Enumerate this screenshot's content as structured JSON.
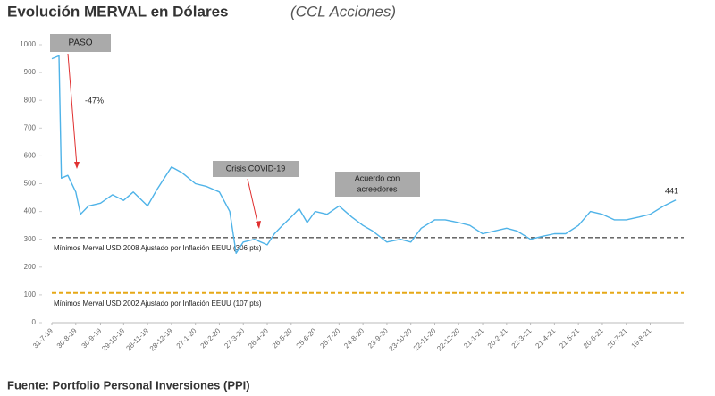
{
  "chart_data": {
    "type": "line",
    "title": "Evolución MERVAL en Dólares",
    "subtitle": "(CCL Acciones)",
    "source": "Fuente: Portfolio Personal Inversiones (PPI)",
    "ylim": [
      0,
      1000
    ],
    "yticks": [
      0,
      100,
      200,
      300,
      400,
      500,
      600,
      700,
      800,
      900,
      1000
    ],
    "xlim": [
      "2019-07-31",
      "2021-09-30"
    ],
    "xticks": [
      {
        "value": "2019-07-31",
        "label": "31-7-19"
      },
      {
        "value": "2019-08-30",
        "label": "30-8-19"
      },
      {
        "value": "2019-09-30",
        "label": "30-9-19"
      },
      {
        "value": "2019-10-29",
        "label": "29-10-19"
      },
      {
        "value": "2019-11-28",
        "label": "28-11-19"
      },
      {
        "value": "2019-12-28",
        "label": "28-12-19"
      },
      {
        "value": "2020-01-27",
        "label": "27-1-20"
      },
      {
        "value": "2020-02-26",
        "label": "26-2-20"
      },
      {
        "value": "2020-03-27",
        "label": "27-3-20"
      },
      {
        "value": "2020-04-26",
        "label": "26-4-20"
      },
      {
        "value": "2020-05-26",
        "label": "26-5-20"
      },
      {
        "value": "2020-06-25",
        "label": "25-6-20"
      },
      {
        "value": "2020-07-25",
        "label": "25-7-20"
      },
      {
        "value": "2020-08-24",
        "label": "24-8-20"
      },
      {
        "value": "2020-09-23",
        "label": "23-9-20"
      },
      {
        "value": "2020-10-23",
        "label": "23-10-20"
      },
      {
        "value": "2020-11-22",
        "label": "22-11-20"
      },
      {
        "value": "2020-12-22",
        "label": "22-12-20"
      },
      {
        "value": "2021-01-21",
        "label": "21-1-21"
      },
      {
        "value": "2021-02-20",
        "label": "20-2-21"
      },
      {
        "value": "2021-03-22",
        "label": "22-3-21"
      },
      {
        "value": "2021-04-21",
        "label": "21-4-21"
      },
      {
        "value": "2021-05-21",
        "label": "21-5-21"
      },
      {
        "value": "2021-06-20",
        "label": "20-6-21"
      },
      {
        "value": "2021-07-20",
        "label": "20-7-21"
      },
      {
        "value": "2021-08-19",
        "label": "19-8-21"
      }
    ],
    "x": [
      "2019-07-31",
      "2019-08-09",
      "2019-08-12",
      "2019-08-20",
      "2019-08-30",
      "2019-09-05",
      "2019-09-15",
      "2019-09-30",
      "2019-10-15",
      "2019-10-29",
      "2019-11-10",
      "2019-11-28",
      "2019-12-10",
      "2019-12-28",
      "2020-01-10",
      "2020-01-27",
      "2020-02-10",
      "2020-02-26",
      "2020-03-10",
      "2020-03-18",
      "2020-03-27",
      "2020-04-10",
      "2020-04-26",
      "2020-05-05",
      "2020-05-15",
      "2020-05-26",
      "2020-06-05",
      "2020-06-15",
      "2020-06-25",
      "2020-07-10",
      "2020-07-25",
      "2020-08-10",
      "2020-08-24",
      "2020-09-05",
      "2020-09-23",
      "2020-10-10",
      "2020-10-23",
      "2020-11-05",
      "2020-11-22",
      "2020-12-05",
      "2020-12-22",
      "2021-01-05",
      "2021-01-21",
      "2021-02-05",
      "2021-02-20",
      "2021-03-05",
      "2021-03-22",
      "2021-04-05",
      "2021-04-21",
      "2021-05-05",
      "2021-05-21",
      "2021-06-05",
      "2021-06-20",
      "2021-07-05",
      "2021-07-20",
      "2021-08-05",
      "2021-08-19",
      "2021-09-05",
      "2021-09-20"
    ],
    "series": [
      {
        "name": "MERVAL USD",
        "color": "#4fb3e8",
        "values": [
          950,
          960,
          520,
          530,
          470,
          390,
          420,
          430,
          460,
          440,
          470,
          420,
          480,
          560,
          540,
          500,
          490,
          470,
          400,
          250,
          290,
          300,
          280,
          320,
          350,
          380,
          410,
          360,
          400,
          390,
          420,
          380,
          350,
          330,
          290,
          300,
          290,
          340,
          370,
          370,
          360,
          350,
          320,
          330,
          340,
          330,
          300,
          310,
          320,
          320,
          350,
          400,
          390,
          370,
          370,
          380,
          390,
          420,
          441
        ]
      }
    ],
    "reference_lines": [
      {
        "value": 306,
        "label": "Mínimos Merval USD 2008 Ajustado por Inflación EEUU (306 pts)",
        "color": "#555555"
      },
      {
        "value": 107,
        "label": "Mínimos Merval USD 2002 Ajustado por Inflación EEUU (107 pts)",
        "color": "#e6a817"
      }
    ],
    "annotations": [
      "PASO",
      "-47%",
      "Crisis COVID-19",
      "Acuerdo con",
      "acreedores",
      "441"
    ]
  }
}
